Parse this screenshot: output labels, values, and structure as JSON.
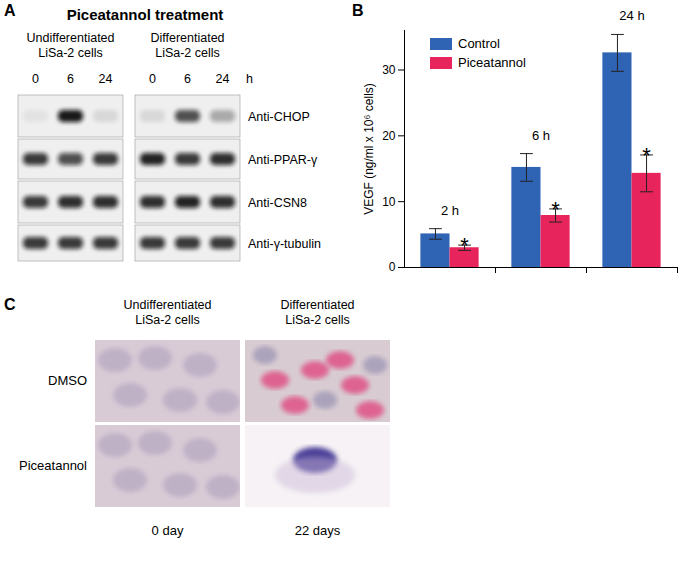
{
  "panel_labels": {
    "a": "A",
    "b": "B",
    "c": "C"
  },
  "blot": {
    "title": "Piceatannol treatment",
    "time_unit": "h",
    "groups": [
      {
        "label_lines": [
          "Undifferentiated",
          "LiSa-2 cells"
        ],
        "times": [
          0,
          6,
          24
        ]
      },
      {
        "label_lines": [
          "Differentiated",
          "LiSa-2 cells"
        ],
        "times": [
          0,
          6,
          24
        ]
      }
    ],
    "rows": [
      {
        "label": "Anti-CHOP",
        "intensity": [
          [
            0.05,
            0.95,
            0.1
          ],
          [
            0.1,
            0.7,
            0.3
          ]
        ]
      },
      {
        "label": "Anti-PPAR-γ",
        "intensity": [
          [
            0.8,
            0.7,
            0.8
          ],
          [
            0.9,
            0.8,
            0.85
          ]
        ]
      },
      {
        "label": "Anti-CSN8",
        "intensity": [
          [
            0.8,
            0.85,
            0.85
          ],
          [
            0.85,
            0.9,
            0.85
          ]
        ]
      },
      {
        "label": "Anti-γ-tubulin",
        "intensity": [
          [
            0.8,
            0.8,
            0.8
          ],
          [
            0.8,
            0.8,
            0.8
          ]
        ]
      }
    ]
  },
  "chart_data": {
    "type": "bar",
    "y_label": "VEGF (ng/ml x 10⁶ cells)",
    "categories": [
      "2 h",
      "6 h",
      "24 h"
    ],
    "series": [
      {
        "name": "Control",
        "color": "#2f63b4",
        "values": [
          5.1,
          15.2,
          32.6
        ],
        "errors": [
          0.8,
          2.1,
          2.8
        ]
      },
      {
        "name": "Piceatannol",
        "color": "#e8245c",
        "values": [
          3.0,
          7.9,
          14.3
        ],
        "errors": [
          0.4,
          1.0,
          2.8
        ],
        "annotations": [
          "*",
          "*",
          "*"
        ]
      }
    ],
    "ylim": [
      0,
      36
    ],
    "yticks": [
      0,
      10,
      20,
      30
    ],
    "legend": "top-left"
  },
  "micrographs": {
    "columns": [
      {
        "label_lines": [
          "Undifferentiated",
          "LiSa-2 cells"
        ],
        "time": "0 day"
      },
      {
        "label_lines": [
          "Differentiated",
          "LiSa-2 cells"
        ],
        "time": "22 days"
      }
    ],
    "rows": [
      "DMSO",
      "Piceatannol"
    ]
  }
}
